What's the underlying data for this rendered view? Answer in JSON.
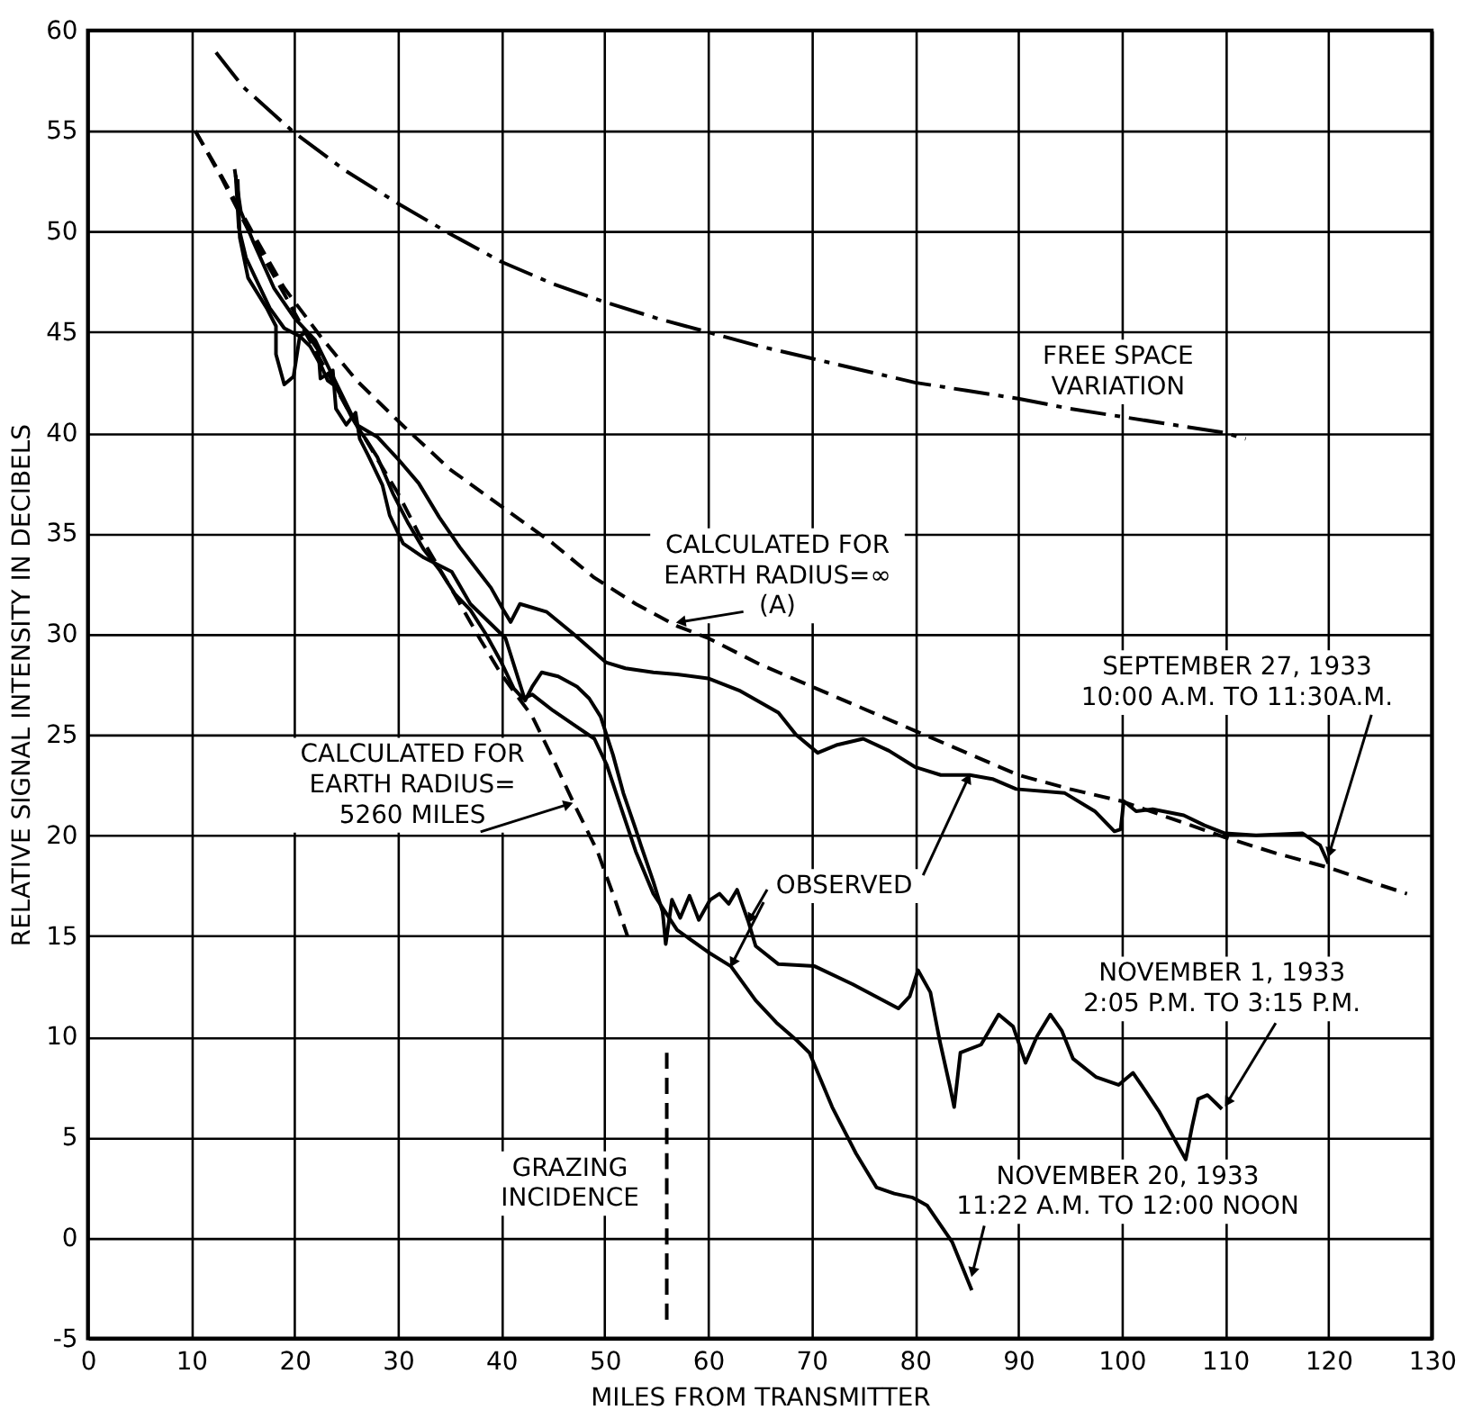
{
  "chart_data": {
    "type": "line",
    "xlabel": "MILES FROM TRANSMITTER",
    "ylabel": "RELATIVE SIGNAL INTENSITY IN DECIBELS",
    "xlim": [
      0,
      130
    ],
    "xticks": [
      0,
      10,
      20,
      30,
      40,
      50,
      60,
      70,
      80,
      90,
      100,
      110,
      120,
      130
    ],
    "ylim": [
      -5,
      60
    ],
    "yticks": [
      -5,
      0,
      5,
      10,
      15,
      20,
      25,
      30,
      35,
      40,
      45,
      50,
      55,
      60
    ],
    "grid": true,
    "series": [
      {
        "name": "FREE SPACE\nVARIATION",
        "color": "#000000",
        "line_style": "dashdot",
        "x": [
          12.4,
          15,
          20,
          25,
          30,
          35,
          40,
          45,
          50,
          55,
          60,
          65,
          70,
          75,
          80,
          85,
          90,
          95,
          100,
          105,
          110,
          112
        ],
        "values": [
          58.9,
          57.2,
          54.9,
          53.0,
          51.4,
          49.9,
          48.5,
          47.4,
          46.5,
          45.7,
          45.0,
          44.3,
          43.7,
          43.1,
          42.5,
          42.1,
          41.7,
          41.2,
          40.8,
          40.4,
          40.0,
          39.7
        ]
      },
      {
        "name": "CALCULATED FOR\nEARTH RADIUS=∞\n(A)",
        "color": "#000000",
        "line_style": "dashed",
        "x": [
          10.4,
          13,
          16.2,
          19,
          22.5,
          26,
          30.6,
          35,
          40.4,
          45,
          49,
          53,
          57,
          60,
          65,
          70,
          75,
          80,
          85,
          90,
          95,
          100,
          105,
          110,
          115,
          120,
          124,
          127.6
        ],
        "values": [
          55,
          52.7,
          49.7,
          47.2,
          44.8,
          42.6,
          40.3,
          38.2,
          36.2,
          34.5,
          32.8,
          31.5,
          30.4,
          29.8,
          28.5,
          27.4,
          26.3,
          25.2,
          24.1,
          23.0,
          22.3,
          21.7,
          20.8,
          19.9,
          19.1,
          18.4,
          17.7,
          17.1
        ]
      },
      {
        "name": "CALCULATED FOR\nEARTH RADIUS=\n5260 MILES",
        "color": "#000000",
        "line_style": "dashed",
        "x": [
          10.4,
          13,
          16,
          19,
          22,
          25,
          28,
          30,
          32,
          35,
          38,
          40,
          43,
          45,
          47,
          49.3,
          51,
          52.2
        ],
        "values": [
          55,
          52.6,
          49.6,
          46.9,
          44.1,
          41.3,
          38.7,
          37.0,
          35.0,
          32.4,
          29.7,
          28.0,
          25.9,
          23.8,
          21.6,
          19.2,
          16.8,
          15.0
        ]
      },
      {
        "name": "SEPTEMBER 27, 1933\n10:00 A.M. TO 11:30A.M.",
        "color": "#000000",
        "line_style": "solid",
        "x": [
          14.2,
          14.8,
          16,
          18,
          20,
          22,
          24,
          26,
          28,
          30,
          32,
          34,
          36,
          37.5,
          39,
          40.2,
          40.9,
          41.8,
          44.4,
          47,
          50.1,
          52,
          54.7,
          57,
          60,
          63,
          66.8,
          68.5,
          70.6,
          72.5,
          75,
          77.5,
          80,
          82.5,
          85.3,
          87.5,
          89.8,
          94.5,
          97.4,
          99.3,
          99.9,
          100.2,
          101.4,
          103,
          106,
          108,
          110,
          113,
          117.5,
          119.2,
          120
        ],
        "values": [
          53.1,
          51.0,
          49.5,
          47.2,
          45.7,
          44.6,
          42.5,
          40.4,
          39.8,
          38.7,
          37.5,
          35.8,
          34.3,
          33.3,
          32.3,
          31.2,
          30.6,
          31.5,
          31.1,
          30.0,
          28.6,
          28.3,
          28.1,
          28.0,
          27.8,
          27.2,
          26.1,
          25.0,
          24.1,
          24.5,
          24.8,
          24.2,
          23.4,
          23.0,
          23.0,
          22.8,
          22.3,
          22.1,
          21.2,
          20.2,
          20.3,
          21.7,
          21.2,
          21.3,
          21.0,
          20.5,
          20.1,
          20.0,
          20.1,
          19.5,
          18.6
        ]
      },
      {
        "name": "NOVEMBER 1, 1933\n2:05 P.M. TO 3:15 P.M.",
        "color": "#000000",
        "line_style": "solid",
        "x": [
          14.5,
          14.7,
          15.5,
          17.3,
          18.2,
          18.2,
          19,
          19.9,
          20.5,
          21.1,
          22.3,
          22.5,
          23.7,
          24,
          25,
          25.9,
          26.3,
          27.1,
          28.5,
          29.2,
          30.5,
          32.5,
          35.2,
          37,
          40.4,
          42.3,
          43,
          43.9,
          45.5,
          47.3,
          48.5,
          49.6,
          50.8,
          51.8,
          53,
          53.5,
          54.7,
          55.6,
          55.9,
          56.5,
          57.3,
          58.2,
          59.1,
          60.2,
          61.1,
          62,
          62.8,
          63.9,
          64.6,
          66.8,
          70.3,
          74,
          78.4,
          79.5,
          80.3,
          81.5,
          82.4,
          83.4,
          83.8,
          84.4,
          86.4,
          88.1,
          89.5,
          90.7,
          91.8,
          93.1,
          94.2,
          95.3,
          97.5,
          99.7,
          101.1,
          102.3,
          103.6,
          105,
          106.2,
          106.8,
          107.4,
          108.3,
          109.7
        ],
        "values": [
          52.6,
          49.7,
          47.7,
          46.2,
          45.3,
          43.9,
          42.4,
          42.8,
          44.8,
          45.0,
          44.1,
          42.7,
          43.1,
          41.2,
          40.4,
          41.0,
          39.7,
          38.9,
          37.4,
          35.9,
          34.5,
          33.8,
          33.1,
          31.5,
          29.8,
          26.7,
          27.4,
          28.1,
          27.9,
          27.4,
          26.8,
          25.9,
          24.0,
          22.1,
          20.3,
          19.5,
          17.7,
          16.2,
          14.6,
          16.8,
          15.9,
          17.0,
          15.8,
          16.8,
          17.1,
          16.6,
          17.3,
          15.7,
          14.5,
          13.6,
          13.5,
          12.6,
          11.4,
          12.0,
          13.3,
          12.2,
          9.8,
          7.5,
          6.5,
          9.2,
          9.6,
          11.1,
          10.5,
          8.7,
          10.0,
          11.1,
          10.3,
          8.9,
          8.0,
          7.6,
          8.2,
          7.3,
          6.3,
          5.0,
          3.9,
          5.5,
          6.9,
          7.1,
          6.4
        ]
      },
      {
        "name": "NOVEMBER 20, 1933\n11:22 A.M. TO 12:00 NOON",
        "color": "#000000",
        "line_style": "solid",
        "x": [
          14.3,
          14.6,
          15.3,
          16.4,
          17.6,
          19,
          20.5,
          21.5,
          22.6,
          23.2,
          24,
          24.8,
          25.5,
          26.2,
          27,
          28,
          29.5,
          31,
          32.5,
          34,
          35.5,
          37,
          38.5,
          40,
          41.2,
          42.1,
          43,
          45,
          47,
          49,
          50.2,
          51.3,
          53,
          54.7,
          57,
          60,
          62.2,
          64.6,
          66.6,
          68.6,
          69.8,
          72,
          74.3,
          76.3,
          78,
          79.8,
          81.2,
          83.6,
          85.5
        ],
        "values": [
          52.8,
          50.2,
          48.7,
          47.5,
          46.2,
          45.2,
          44.8,
          44.3,
          43.3,
          42.6,
          42.3,
          41.5,
          40.8,
          40.2,
          39.6,
          38.8,
          37.0,
          35.5,
          34.2,
          33.2,
          32.0,
          31.2,
          30.0,
          28.6,
          27.3,
          26.8,
          27.0,
          26.2,
          25.5,
          24.8,
          23.5,
          21.8,
          19.2,
          17.1,
          15.3,
          14.2,
          13.5,
          11.8,
          10.7,
          9.8,
          9.2,
          6.5,
          4.2,
          2.5,
          2.2,
          2.0,
          1.6,
          -0.2,
          -2.6
        ]
      },
      {
        "name": "GRAZING\nINCIDENCE",
        "color": "#000000",
        "line_style": "dashed",
        "x": [
          56,
          56
        ],
        "values": [
          9.2,
          -4.1
        ]
      }
    ],
    "annotations": [
      {
        "text": "OBSERVED",
        "x": 85.3,
        "y": 23.0
      }
    ]
  }
}
